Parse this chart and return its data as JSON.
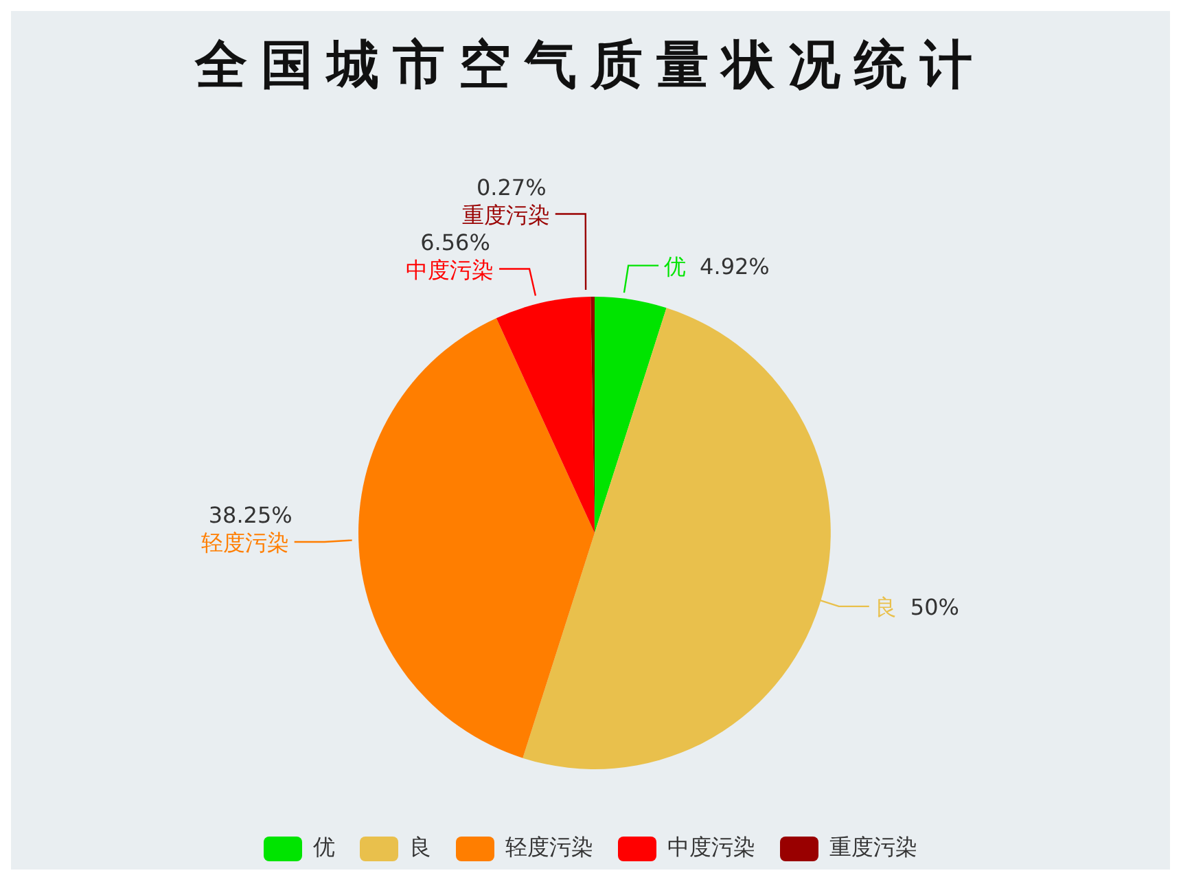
{
  "chart_data": {
    "type": "pie",
    "title": "全国城市空气质量状况统计",
    "categories": [
      "优",
      "良",
      "轻度污染",
      "中度污染",
      "重度污染"
    ],
    "values": [
      4.92,
      50,
      38.25,
      6.56,
      0.27
    ],
    "colors": [
      "#00e400",
      "#e9c04c",
      "#ff7e00",
      "#ff0000",
      "#990000"
    ],
    "value_labels": [
      "4.92%",
      "50%",
      "38.25%",
      "6.56%",
      "0.27%"
    ],
    "legend": "bottom"
  }
}
